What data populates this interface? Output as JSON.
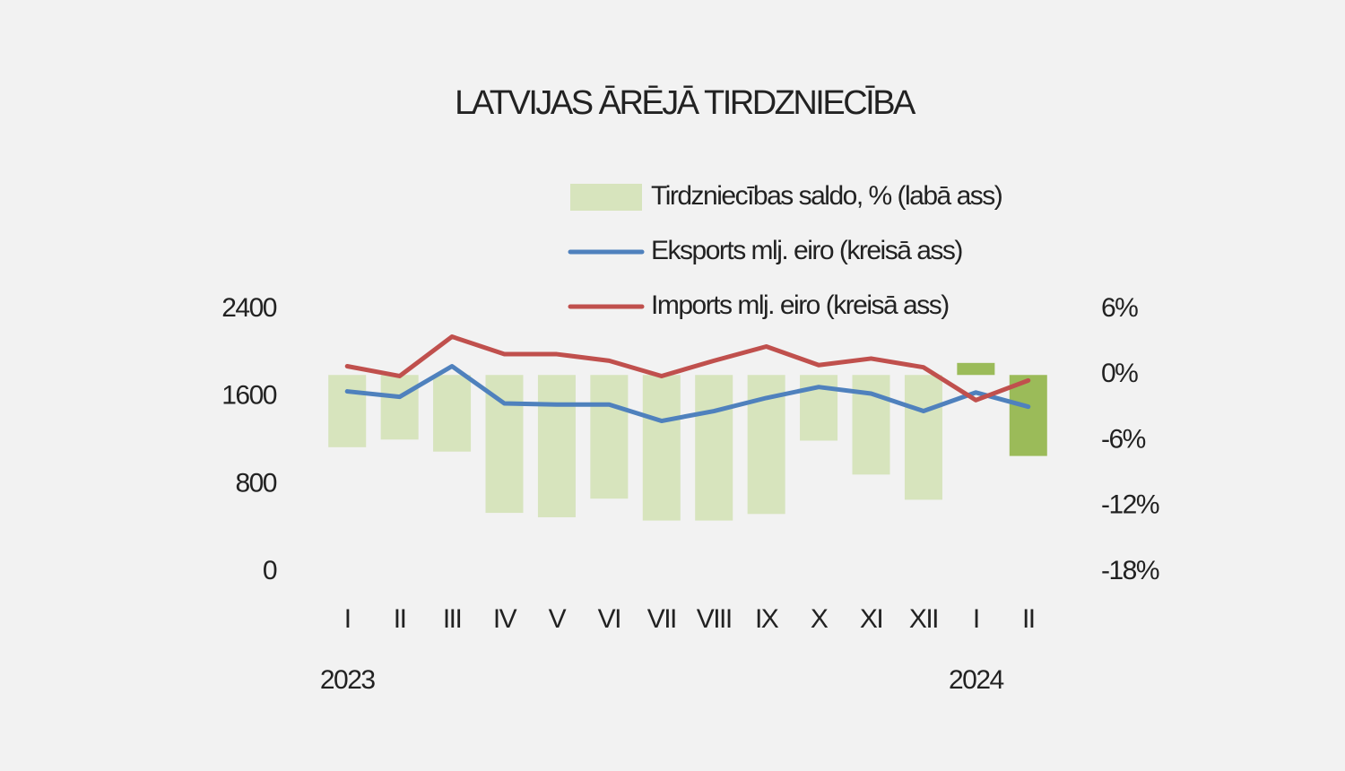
{
  "chart_data": {
    "type": "bar-line",
    "title": "LATVIJAS ĀRĒJĀ TIRDZNIECĪBA",
    "categories": [
      "I",
      "II",
      "III",
      "IV",
      "V",
      "VI",
      "VII",
      "VIII",
      "IX",
      "X",
      "XI",
      "XII",
      "I",
      "II"
    ],
    "year_labels": [
      "2023",
      null,
      null,
      null,
      null,
      null,
      null,
      null,
      null,
      null,
      null,
      null,
      "2024",
      null
    ],
    "series": [
      {
        "name": "Tirdzniecības saldo, % (labā ass)",
        "type": "bar",
        "axis": "y2",
        "colors": [
          "#d7e4bd",
          "#d7e4bd",
          "#d7e4bd",
          "#d7e4bd",
          "#d7e4bd",
          "#d7e4bd",
          "#d7e4bd",
          "#d7e4bd",
          "#d7e4bd",
          "#d7e4bd",
          "#d7e4bd",
          "#d7e4bd",
          "#9bbb59",
          "#9bbb59"
        ],
        "color": "#d7e4bd",
        "values": [
          -6.6,
          -5.9,
          -7.0,
          -12.6,
          -13.0,
          -11.3,
          -13.3,
          -13.3,
          -12.7,
          -6.0,
          -9.1,
          -11.4,
          1.1,
          -7.4
        ]
      },
      {
        "name": "Eksports mlj. eiro (kreisā ass)",
        "type": "line",
        "color": "#4f81bd",
        "values": [
          1650,
          1600,
          1880,
          1540,
          1530,
          1530,
          1380,
          1470,
          1590,
          1690,
          1630,
          1470,
          1640,
          1510
        ]
      },
      {
        "name": "Imports mlj. eiro (kreisā ass)",
        "type": "line",
        "color": "#c0504d",
        "values": [
          1880,
          1790,
          2150,
          1990,
          1990,
          1930,
          1790,
          1930,
          2060,
          1890,
          1950,
          1870,
          1570,
          1750
        ]
      }
    ],
    "ylim": [
      0,
      2400
    ],
    "yticks": [
      0,
      800,
      1600,
      2400
    ],
    "y2lim": [
      -18,
      6
    ],
    "y2ticks": [
      {
        "value": -18,
        "label": "-18%"
      },
      {
        "value": -12,
        "label": "-12%"
      },
      {
        "value": -6,
        "label": "-6%"
      },
      {
        "value": 0,
        "label": "0%"
      },
      {
        "value": 6,
        "label": "6%"
      }
    ],
    "grid": false
  }
}
